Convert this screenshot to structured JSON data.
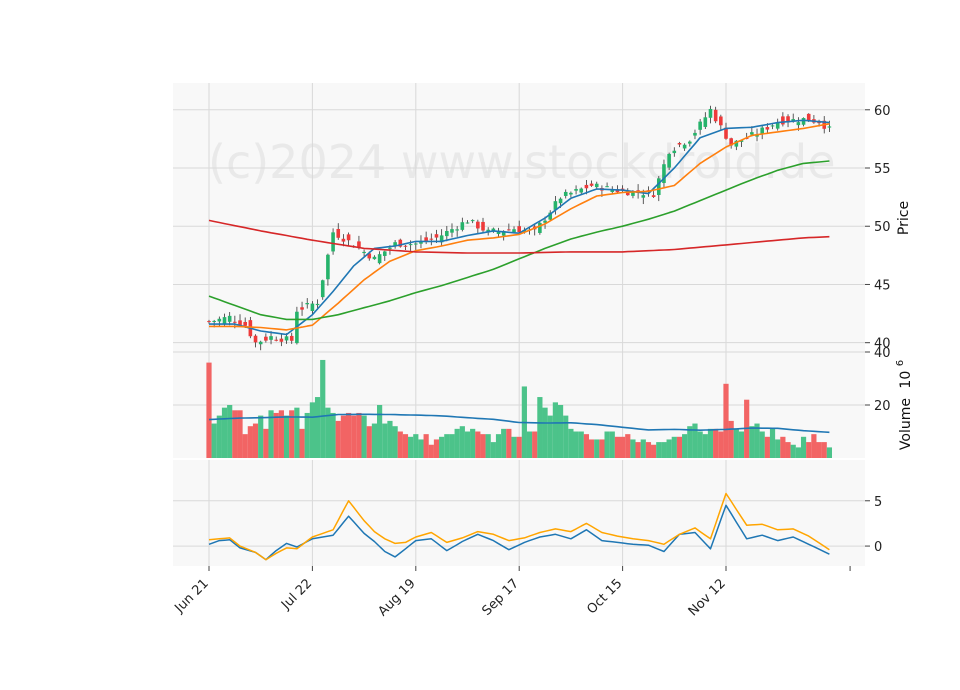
{
  "chart_data": {
    "type": "candlestick",
    "watermark": "(c)2024 www.stockdroid.de",
    "x_tick_labels": [
      "Jun 21",
      "Jul 22",
      "Aug 19",
      "Sep 17",
      "Oct 15",
      "Nov 12"
    ],
    "x_tick_index": [
      0,
      20,
      40,
      60,
      80,
      100
    ],
    "n_days": 121,
    "grid": true,
    "price_panel": {
      "ylabel": "Price",
      "ylim": [
        39.2,
        62.3
      ],
      "yticks": [
        40,
        45,
        50,
        55,
        60
      ],
      "close_keypoints": [
        [
          0,
          41.8
        ],
        [
          4,
          42.2
        ],
        [
          7,
          41.5
        ],
        [
          9,
          40.0
        ],
        [
          12,
          40.5
        ],
        [
          16,
          40.2
        ],
        [
          17,
          42.8
        ],
        [
          21,
          43.5
        ],
        [
          24,
          49.5
        ],
        [
          27,
          48.7
        ],
        [
          32,
          47.2
        ],
        [
          36,
          48.5
        ],
        [
          40,
          48.5
        ],
        [
          44,
          49.0
        ],
        [
          50,
          50.5
        ],
        [
          54,
          49.5
        ],
        [
          59,
          49.8
        ],
        [
          63,
          49.5
        ],
        [
          68,
          52.5
        ],
        [
          74,
          53.5
        ],
        [
          80,
          53.0
        ],
        [
          86,
          52.8
        ],
        [
          89,
          56.5
        ],
        [
          93,
          57.5
        ],
        [
          97,
          60.0
        ],
        [
          101,
          57.0
        ],
        [
          106,
          58.0
        ],
        [
          110,
          59.0
        ],
        [
          115,
          59.2
        ],
        [
          118,
          59.0
        ],
        [
          120,
          58.3
        ]
      ],
      "ma_series": [
        {
          "color": "#1f77b4",
          "keypoints": [
            [
              0,
              41.6
            ],
            [
              5,
              41.6
            ],
            [
              10,
              41.0
            ],
            [
              15,
              40.7
            ],
            [
              20,
              42.4
            ],
            [
              24,
              44.4
            ],
            [
              28,
              46.6
            ],
            [
              32,
              48.1
            ],
            [
              36,
              48.3
            ],
            [
              40,
              48.7
            ],
            [
              45,
              48.7
            ],
            [
              50,
              49.2
            ],
            [
              55,
              49.6
            ],
            [
              60,
              49.4
            ],
            [
              65,
              50.7
            ],
            [
              70,
              52.4
            ],
            [
              75,
              53.2
            ],
            [
              80,
              53.1
            ],
            [
              85,
              52.8
            ],
            [
              90,
              55.0
            ],
            [
              95,
              57.6
            ],
            [
              100,
              58.4
            ],
            [
              105,
              58.5
            ],
            [
              110,
              58.9
            ],
            [
              115,
              59.1
            ],
            [
              120,
              58.9
            ]
          ]
        },
        {
          "color": "#ff7f0e",
          "keypoints": [
            [
              0,
              41.4
            ],
            [
              5,
              41.4
            ],
            [
              10,
              41.3
            ],
            [
              15,
              41.1
            ],
            [
              20,
              41.5
            ],
            [
              25,
              43.4
            ],
            [
              30,
              45.4
            ],
            [
              35,
              47.0
            ],
            [
              40,
              47.9
            ],
            [
              45,
              48.3
            ],
            [
              50,
              48.8
            ],
            [
              55,
              49.0
            ],
            [
              60,
              49.3
            ],
            [
              65,
              50.2
            ],
            [
              70,
              51.5
            ],
            [
              75,
              52.6
            ],
            [
              80,
              52.9
            ],
            [
              85,
              53.0
            ],
            [
              90,
              53.5
            ],
            [
              95,
              55.4
            ],
            [
              100,
              56.8
            ],
            [
              105,
              57.8
            ],
            [
              110,
              58.1
            ],
            [
              115,
              58.4
            ],
            [
              120,
              58.8
            ]
          ]
        },
        {
          "color": "#2ca02c",
          "keypoints": [
            [
              0,
              44.0
            ],
            [
              5,
              43.2
            ],
            [
              10,
              42.4
            ],
            [
              15,
              42.0
            ],
            [
              20,
              42.0
            ],
            [
              25,
              42.4
            ],
            [
              30,
              43.0
            ],
            [
              35,
              43.6
            ],
            [
              40,
              44.3
            ],
            [
              45,
              44.9
            ],
            [
              50,
              45.6
            ],
            [
              55,
              46.3
            ],
            [
              60,
              47.2
            ],
            [
              65,
              48.1
            ],
            [
              70,
              48.9
            ],
            [
              75,
              49.5
            ],
            [
              80,
              50.0
            ],
            [
              85,
              50.6
            ],
            [
              90,
              51.3
            ],
            [
              95,
              52.2
            ],
            [
              100,
              53.1
            ],
            [
              105,
              54.0
            ],
            [
              110,
              54.8
            ],
            [
              115,
              55.4
            ],
            [
              120,
              55.6
            ]
          ]
        },
        {
          "color": "#d62728",
          "keypoints": [
            [
              0,
              50.5
            ],
            [
              10,
              49.6
            ],
            [
              20,
              48.8
            ],
            [
              30,
              48.1
            ],
            [
              40,
              47.8
            ],
            [
              50,
              47.7
            ],
            [
              60,
              47.7
            ],
            [
              70,
              47.8
            ],
            [
              80,
              47.8
            ],
            [
              90,
              48.0
            ],
            [
              95,
              48.2
            ],
            [
              100,
              48.4
            ],
            [
              105,
              48.6
            ],
            [
              110,
              48.8
            ],
            [
              115,
              49.0
            ],
            [
              120,
              49.1
            ]
          ]
        }
      ]
    },
    "volume_panel": {
      "ylabel": "Volume",
      "unit_label": "10",
      "unit_exponent": "6",
      "ylim": [
        0,
        40
      ],
      "yticks": [
        20,
        40
      ],
      "values": [
        36,
        13,
        16,
        19,
        20,
        18,
        18,
        9,
        12,
        13,
        16,
        11,
        18,
        17,
        18,
        16,
        18,
        19,
        11,
        17,
        21,
        23,
        37,
        19,
        17,
        14,
        16,
        17,
        16,
        17,
        16,
        12,
        13,
        20,
        13,
        14,
        12,
        10,
        9,
        8,
        9,
        7,
        9,
        5,
        7,
        8,
        9,
        9,
        11,
        12,
        10,
        11,
        10,
        9,
        9,
        6,
        9,
        11,
        11,
        8,
        8,
        27,
        10,
        10,
        23,
        19,
        16,
        21,
        20,
        16,
        11,
        10,
        10,
        9,
        7,
        7,
        7,
        10,
        10,
        8,
        8,
        9,
        7,
        6,
        7,
        6,
        5,
        6,
        6,
        7,
        8,
        8,
        9,
        12,
        13,
        10,
        9,
        11,
        11,
        10,
        28,
        14,
        11,
        10,
        22,
        12,
        13,
        10,
        8,
        11,
        7,
        8,
        6,
        5,
        4,
        8,
        6,
        9,
        6,
        6,
        4
      ],
      "ma_keypoints": [
        [
          0,
          14.5
        ],
        [
          5,
          15.0
        ],
        [
          10,
          15.2
        ],
        [
          15,
          15.5
        ],
        [
          20,
          15.4
        ],
        [
          25,
          16.4
        ],
        [
          30,
          16.5
        ],
        [
          35,
          16.4
        ],
        [
          40,
          16.2
        ],
        [
          45,
          15.9
        ],
        [
          50,
          15.2
        ],
        [
          55,
          14.6
        ],
        [
          60,
          13.4
        ],
        [
          65,
          13.2
        ],
        [
          70,
          13.3
        ],
        [
          75,
          12.6
        ],
        [
          80,
          11.6
        ],
        [
          85,
          10.6
        ],
        [
          90,
          10.8
        ],
        [
          95,
          10.5
        ],
        [
          100,
          10.8
        ],
        [
          105,
          11.3
        ],
        [
          110,
          11.2
        ],
        [
          115,
          10.3
        ],
        [
          120,
          9.7
        ]
      ]
    },
    "indicator_panel": {
      "ylim": [
        -2.2,
        9.5
      ],
      "yticks": [
        0,
        5
      ],
      "series": [
        {
          "color": "#1f77b4",
          "keypoints": [
            [
              0,
              0.2
            ],
            [
              2,
              0.6
            ],
            [
              4,
              0.7
            ],
            [
              6,
              -0.2
            ],
            [
              9,
              -0.7
            ],
            [
              11,
              -1.5
            ],
            [
              13,
              -0.5
            ],
            [
              15,
              0.3
            ],
            [
              17,
              -0.1
            ],
            [
              20,
              0.8
            ],
            [
              24,
              1.2
            ],
            [
              27,
              3.3
            ],
            [
              30,
              1.4
            ],
            [
              32,
              0.5
            ],
            [
              34,
              -0.6
            ],
            [
              36,
              -1.2
            ],
            [
              38,
              -0.3
            ],
            [
              40,
              0.6
            ],
            [
              43,
              0.8
            ],
            [
              46,
              -0.5
            ],
            [
              49,
              0.5
            ],
            [
              52,
              1.3
            ],
            [
              55,
              0.6
            ],
            [
              58,
              -0.4
            ],
            [
              61,
              0.4
            ],
            [
              64,
              1.0
            ],
            [
              67,
              1.3
            ],
            [
              70,
              0.8
            ],
            [
              73,
              1.8
            ],
            [
              76,
              0.6
            ],
            [
              79,
              0.4
            ],
            [
              82,
              0.2
            ],
            [
              85,
              0.1
            ],
            [
              88,
              -0.6
            ],
            [
              91,
              1.3
            ],
            [
              94,
              1.5
            ],
            [
              97,
              -0.3
            ],
            [
              100,
              4.5
            ],
            [
              104,
              0.8
            ],
            [
              107,
              1.2
            ],
            [
              110,
              0.6
            ],
            [
              113,
              1.0
            ],
            [
              116,
              0.2
            ],
            [
              120,
              -0.9
            ]
          ]
        },
        {
          "color": "#ffa500",
          "keypoints": [
            [
              0,
              0.7
            ],
            [
              2,
              0.8
            ],
            [
              4,
              0.9
            ],
            [
              6,
              0.0
            ],
            [
              9,
              -0.7
            ],
            [
              11,
              -1.5
            ],
            [
              13,
              -0.8
            ],
            [
              15,
              -0.2
            ],
            [
              17,
              -0.3
            ],
            [
              20,
              1.0
            ],
            [
              24,
              1.8
            ],
            [
              27,
              5.0
            ],
            [
              30,
              2.8
            ],
            [
              32,
              1.6
            ],
            [
              34,
              0.8
            ],
            [
              36,
              0.3
            ],
            [
              38,
              0.4
            ],
            [
              40,
              1.0
            ],
            [
              43,
              1.5
            ],
            [
              46,
              0.4
            ],
            [
              49,
              0.9
            ],
            [
              52,
              1.6
            ],
            [
              55,
              1.3
            ],
            [
              58,
              0.6
            ],
            [
              61,
              0.9
            ],
            [
              64,
              1.5
            ],
            [
              67,
              1.9
            ],
            [
              70,
              1.6
            ],
            [
              73,
              2.5
            ],
            [
              76,
              1.5
            ],
            [
              79,
              1.1
            ],
            [
              82,
              0.8
            ],
            [
              85,
              0.6
            ],
            [
              88,
              0.2
            ],
            [
              91,
              1.3
            ],
            [
              94,
              2.0
            ],
            [
              97,
              0.8
            ],
            [
              100,
              5.8
            ],
            [
              104,
              2.3
            ],
            [
              107,
              2.4
            ],
            [
              110,
              1.8
            ],
            [
              113,
              1.9
            ],
            [
              116,
              1.1
            ],
            [
              120,
              -0.4
            ]
          ]
        }
      ]
    }
  }
}
